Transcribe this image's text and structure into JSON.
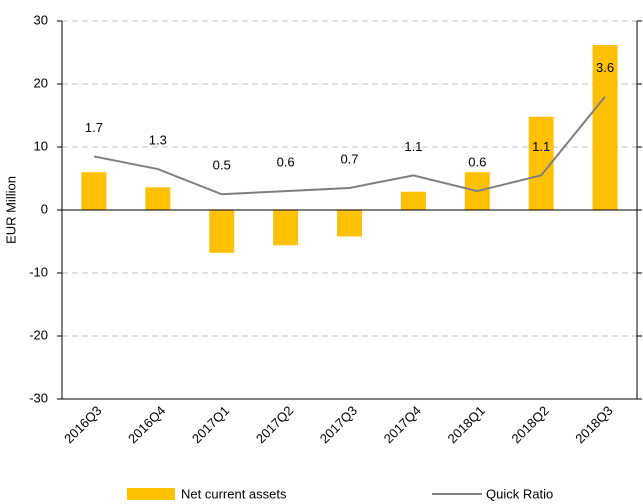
{
  "chart_data": {
    "type": "bar_line",
    "y_label": "EUR Million",
    "categories": [
      "2016Q3",
      "2016Q4",
      "2017Q1",
      "2017Q2",
      "2017Q3",
      "2017Q4",
      "2018Q1",
      "2018Q2",
      "2018Q3"
    ],
    "series": [
      {
        "name": "Net current assets",
        "type": "bar",
        "color": "#ffc000",
        "values": [
          6,
          3.6,
          -6.8,
          -5.6,
          -4.2,
          2.9,
          6,
          14.8,
          26.2
        ]
      },
      {
        "name": "Quick Ratio",
        "type": "line",
        "axis": "y2",
        "color": "#7f7f7f",
        "values": [
          1.7,
          1.3,
          0.5,
          0.6,
          0.7,
          1.1,
          0.6,
          1.1,
          3.6
        ]
      }
    ],
    "ylim": [
      -30,
      30
    ],
    "yticks": [
      -30,
      -20,
      -10,
      0,
      10,
      20,
      30
    ],
    "y2lim": [
      -6,
      6
    ],
    "y2ticks": [
      -6,
      -4,
      -2,
      0,
      2,
      4,
      6
    ],
    "grid": true,
    "legend": "bottom"
  }
}
